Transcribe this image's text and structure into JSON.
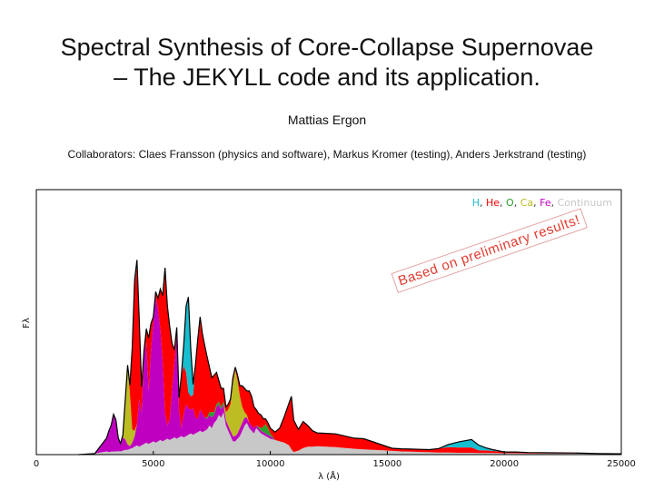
{
  "slide": {
    "title_line1": "Spectral Synthesis of Core-Collapse Supernovae",
    "title_line2": "– The JEKYLL code and its application.",
    "author": "Mattias Ergon",
    "collaborators": "Collaborators: Claes Fransson (physics and software), Markus Kromer (testing), Anders Jerkstrand (testing)",
    "stamp": "Based on preliminary results!"
  },
  "chart_data": {
    "type": "area",
    "xlabel": "λ (Å)",
    "ylabel": "Fλ",
    "xlim": [
      0,
      25000
    ],
    "ylim": [
      0,
      1
    ],
    "x_ticks": [
      0,
      5000,
      10000,
      15000,
      20000,
      25000
    ],
    "x_tick_labels": [
      "0",
      "5000",
      "10000",
      "15000",
      "20000",
      "25000"
    ],
    "legend_position": "top-right",
    "grid": false,
    "legend": [
      {
        "name": "H",
        "color": "#17becf"
      },
      {
        "name": "He",
        "color": "#ff0000"
      },
      {
        "name": "O",
        "color": "#2ca02c"
      },
      {
        "name": "Ca",
        "color": "#bcbd22"
      },
      {
        "name": "Fe",
        "color": "#c000c0"
      },
      {
        "name": "Continuum",
        "color": "#c8c8c8"
      }
    ],
    "layers_bottom_to_top": [
      "Continuum",
      "Fe",
      "Ca",
      "O",
      "He",
      "H"
    ],
    "wavelengths": [
      1800,
      2500,
      3000,
      3100,
      3200,
      3300,
      3400,
      3500,
      3600,
      3700,
      3800,
      3900,
      4000,
      4100,
      4200,
      4300,
      4400,
      4500,
      4600,
      4700,
      4800,
      4900,
      5000,
      5100,
      5200,
      5300,
      5400,
      5500,
      5600,
      5700,
      5800,
      5900,
      6000,
      6100,
      6200,
      6300,
      6400,
      6500,
      6600,
      6700,
      6800,
      6900,
      7000,
      7100,
      7200,
      7300,
      7400,
      7500,
      7600,
      7700,
      7800,
      7900,
      8000,
      8100,
      8200,
      8300,
      8400,
      8500,
      8600,
      8700,
      8800,
      8900,
      9000,
      9100,
      9200,
      9300,
      9400,
      9500,
      9600,
      9700,
      9800,
      9900,
      10000,
      10200,
      10400,
      10600,
      10800,
      10900,
      11000,
      11200,
      11400,
      11600,
      11800,
      12000,
      12400,
      12800,
      13200,
      13600,
      14000,
      14400,
      14800,
      15200,
      15600,
      16000,
      16400,
      16800,
      17200,
      17600,
      18000,
      18300,
      18600,
      18900,
      19200,
      19500,
      20000,
      20500,
      21000,
      22000,
      23000,
      24000,
      25000
    ],
    "series": [
      {
        "name": "Continuum",
        "values": [
          0,
          0.004,
          0.012,
          0.01,
          0.011,
          0.012,
          0.012,
          0.013,
          0.012,
          0.015,
          0.018,
          0.018,
          0.022,
          0.025,
          0.03,
          0.035,
          0.03,
          0.035,
          0.04,
          0.045,
          0.04,
          0.045,
          0.05,
          0.045,
          0.05,
          0.055,
          0.05,
          0.055,
          0.06,
          0.055,
          0.06,
          0.065,
          0.06,
          0.065,
          0.07,
          0.065,
          0.07,
          0.075,
          0.08,
          0.075,
          0.08,
          0.085,
          0.09,
          0.085,
          0.09,
          0.095,
          0.11,
          0.1,
          0.12,
          0.13,
          0.15,
          0.14,
          0.16,
          0.11,
          0.09,
          0.07,
          0.05,
          0.05,
          0.06,
          0.07,
          0.09,
          0.11,
          0.12,
          0.1,
          0.09,
          0.08,
          0.1,
          0.09,
          0.08,
          0.075,
          0.07,
          0.065,
          0.06,
          0.055,
          0.05,
          0.045,
          0.035,
          0.02,
          0.01,
          0.015,
          0.025,
          0.03,
          0.03,
          0.032,
          0.03,
          0.028,
          0.025,
          0.022,
          0.02,
          0.018,
          0.016,
          0.014,
          0.012,
          0.011,
          0.01,
          0.009,
          0.008,
          0.008,
          0.007,
          0.007,
          0.007,
          0.006,
          0.006,
          0.006,
          0.005,
          0.005,
          0.004,
          0.004,
          0.004,
          0.003,
          0.003
        ]
      },
      {
        "name": "Fe",
        "values": [
          0,
          0,
          0.05,
          0.08,
          0.1,
          0.14,
          0.12,
          0.05,
          0.03,
          0.05,
          0.04,
          0.02,
          0.01,
          0.02,
          0.04,
          0.08,
          0.18,
          0.12,
          0.33,
          0.38,
          0.2,
          0.35,
          0.45,
          0.55,
          0.5,
          0.42,
          0.3,
          0.1,
          0.05,
          0.08,
          0.18,
          0.28,
          0.4,
          0.1,
          0.03,
          0.09,
          0.12,
          0.1,
          0.09,
          0.1,
          0.06,
          0.05,
          0.08,
          0.07,
          0.05,
          0.04,
          0.04,
          0.04,
          0.03,
          0.05,
          0.04,
          0.03,
          0.03,
          0.02,
          0.02,
          0.02,
          0.02,
          0.02,
          0.02,
          0.03,
          0.03,
          0.03,
          0.02,
          0.02,
          0.02,
          0.02,
          0.01,
          0.01,
          0.01,
          0.01,
          0.01,
          0.01,
          0.01,
          0,
          0,
          0,
          0,
          0,
          0,
          0,
          0,
          0,
          0,
          0,
          0,
          0,
          0,
          0,
          0,
          0,
          0,
          0,
          0,
          0,
          0,
          0,
          0,
          0,
          0,
          0,
          0,
          0,
          0,
          0,
          0,
          0,
          0,
          0,
          0,
          0,
          0
        ]
      },
      {
        "name": "Ca",
        "values": [
          0,
          0,
          0,
          0,
          0,
          0,
          0,
          0,
          0,
          0.01,
          0.15,
          0.3,
          0.2,
          0.05,
          0.02,
          0,
          0,
          0,
          0,
          0,
          0,
          0,
          0,
          0,
          0,
          0,
          0,
          0,
          0,
          0,
          0,
          0,
          0,
          0,
          0,
          0,
          0,
          0,
          0,
          0,
          0,
          0,
          0,
          0,
          0,
          0,
          0,
          0,
          0,
          0,
          0,
          0,
          0,
          0.03,
          0.06,
          0.1,
          0.2,
          0.25,
          0.2,
          0.12,
          0.06,
          0.02,
          0.01,
          0,
          0,
          0,
          0,
          0,
          0,
          0,
          0,
          0,
          0,
          0,
          0,
          0,
          0,
          0,
          0,
          0,
          0,
          0,
          0,
          0,
          0,
          0,
          0,
          0,
          0,
          0,
          0,
          0,
          0,
          0,
          0,
          0,
          0,
          0,
          0,
          0,
          0,
          0,
          0,
          0,
          0,
          0,
          0,
          0,
          0,
          0,
          0
        ]
      },
      {
        "name": "O",
        "values": [
          0,
          0,
          0,
          0,
          0,
          0,
          0,
          0,
          0,
          0,
          0,
          0,
          0,
          0,
          0,
          0,
          0,
          0,
          0,
          0,
          0,
          0,
          0,
          0,
          0,
          0,
          0,
          0,
          0,
          0,
          0,
          0,
          0,
          0,
          0,
          0,
          0,
          0,
          0,
          0,
          0,
          0,
          0,
          0,
          0,
          0.005,
          0.01,
          0.02,
          0.01,
          0.01,
          0.01,
          0.01,
          0.01,
          0,
          0,
          0,
          0,
          0,
          0,
          0,
          0,
          0,
          0,
          0,
          0,
          0,
          0,
          0.005,
          0.01,
          0.02,
          0.035,
          0.025,
          0.01,
          0,
          0,
          0,
          0,
          0,
          0,
          0,
          0,
          0,
          0,
          0,
          0,
          0,
          0,
          0,
          0,
          0,
          0,
          0,
          0,
          0,
          0,
          0,
          0,
          0,
          0,
          0,
          0,
          0,
          0,
          0,
          0,
          0,
          0,
          0,
          0,
          0,
          0
        ]
      },
      {
        "name": "He",
        "values": [
          0,
          0,
          0,
          0,
          0,
          0,
          0,
          0,
          0,
          0,
          0,
          0,
          0.03,
          0.3,
          0.55,
          0.6,
          0.3,
          0.1,
          0.02,
          0.05,
          0.2,
          0.1,
          0.02,
          0.02,
          0.04,
          0.15,
          0.25,
          0.55,
          0.45,
          0.35,
          0.18,
          0.05,
          0.02,
          0.05,
          0.2,
          0.18,
          0.12,
          0.06,
          0.05,
          0.05,
          0.2,
          0.3,
          0.35,
          0.3,
          0.27,
          0.23,
          0.17,
          0.13,
          0.14,
          0.12,
          0.08,
          0.07,
          0.05,
          0.02,
          0.02,
          0.02,
          0.02,
          0.01,
          0.02,
          0.04,
          0.08,
          0.09,
          0.09,
          0.12,
          0.11,
          0.08,
          0.06,
          0.05,
          0.05,
          0.03,
          0.02,
          0.02,
          0.02,
          0.03,
          0.05,
          0.1,
          0.16,
          0.2,
          0.12,
          0.08,
          0.1,
          0.08,
          0.06,
          0.05,
          0.05,
          0.05,
          0.045,
          0.04,
          0.04,
          0.03,
          0.02,
          0.01,
          0.01,
          0.01,
          0.01,
          0.01,
          0.015,
          0.02,
          0.02,
          0.02,
          0.02,
          0.01,
          0.01,
          0.008,
          0.005,
          0.005,
          0.004,
          0.003,
          0.002,
          0.001,
          0
        ]
      },
      {
        "name": "H",
        "values": [
          0,
          0,
          0,
          0,
          0,
          0,
          0,
          0,
          0,
          0,
          0,
          0,
          0,
          0.01,
          0.02,
          0.02,
          0,
          0,
          0,
          0,
          0,
          0,
          0,
          0,
          0,
          0,
          0,
          0,
          0,
          0,
          0,
          0,
          0,
          0,
          0,
          0.08,
          0.25,
          0.36,
          0.18,
          0.04,
          0,
          0,
          0,
          0,
          0,
          0,
          0,
          0,
          0,
          0,
          0,
          0,
          0,
          0,
          0,
          0,
          0,
          0,
          0,
          0,
          0,
          0,
          0,
          0,
          0,
          0,
          0,
          0,
          0,
          0,
          0,
          0,
          0,
          0,
          0,
          0,
          0,
          0,
          0,
          0,
          0,
          0,
          0,
          0,
          0,
          0,
          0,
          0,
          0,
          0,
          0,
          0,
          0,
          0,
          0,
          0,
          0,
          0.01,
          0.02,
          0.025,
          0.03,
          0.02,
          0.01,
          0.005,
          0,
          0,
          0,
          0,
          0,
          0,
          0
        ]
      }
    ],
    "total_flux_line": {
      "color": "#000000"
    }
  }
}
